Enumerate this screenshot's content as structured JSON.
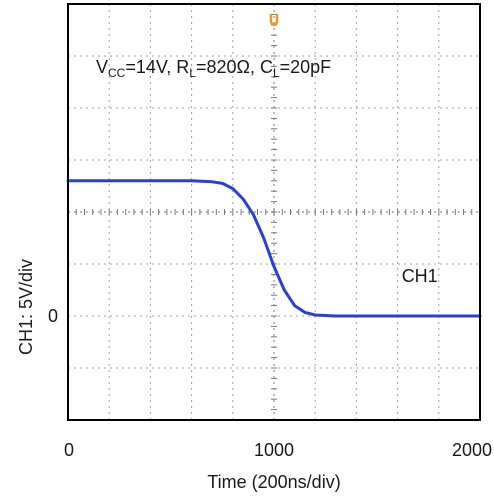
{
  "chart_data": {
    "type": "line",
    "title": "",
    "conditions": {
      "vcc": {
        "symbol": "V",
        "sub": "CC",
        "value": "=14V, "
      },
      "rl": {
        "symbol": "R",
        "sub": "L",
        "value": "=820Ω, "
      },
      "cl": {
        "symbol": "C",
        "sub": "L",
        "value": "=20pF"
      }
    },
    "xlabel": "Time (200ns/div)",
    "ylabel": "CH1: 5V/div",
    "xlim": [
      0,
      2000
    ],
    "ylim": [
      -2,
      6
    ],
    "x_ticks": [
      {
        "value": 0,
        "label": "0"
      },
      {
        "value": 1000,
        "label": "1000"
      },
      {
        "value": 2000,
        "label": "2000"
      }
    ],
    "y_ticks": [
      {
        "value": 0,
        "label": "0"
      }
    ],
    "grid": true,
    "grid_divisions": {
      "x": 10,
      "y": 8
    },
    "background_color": "#ffffff",
    "grid_color": "#a0a0a0",
    "axis_color": "#000000",
    "trigger_marker": {
      "x": 1000,
      "color": "#e8962a"
    },
    "series": [
      {
        "name": "CH1",
        "color": "#2b3fd6",
        "x": [
          0,
          200,
          400,
          600,
          700,
          750,
          800,
          850,
          900,
          950,
          1000,
          1050,
          1100,
          1150,
          1200,
          1300,
          1400,
          1600,
          1800,
          2000
        ],
        "y": [
          2.6,
          2.6,
          2.6,
          2.6,
          2.58,
          2.55,
          2.45,
          2.25,
          1.95,
          1.5,
          0.95,
          0.5,
          0.2,
          0.07,
          0.02,
          0.0,
          0.0,
          0.0,
          0.0,
          0.0
        ]
      }
    ],
    "series_label": {
      "text": "CH1",
      "x": 1620,
      "y": 0.65
    }
  }
}
